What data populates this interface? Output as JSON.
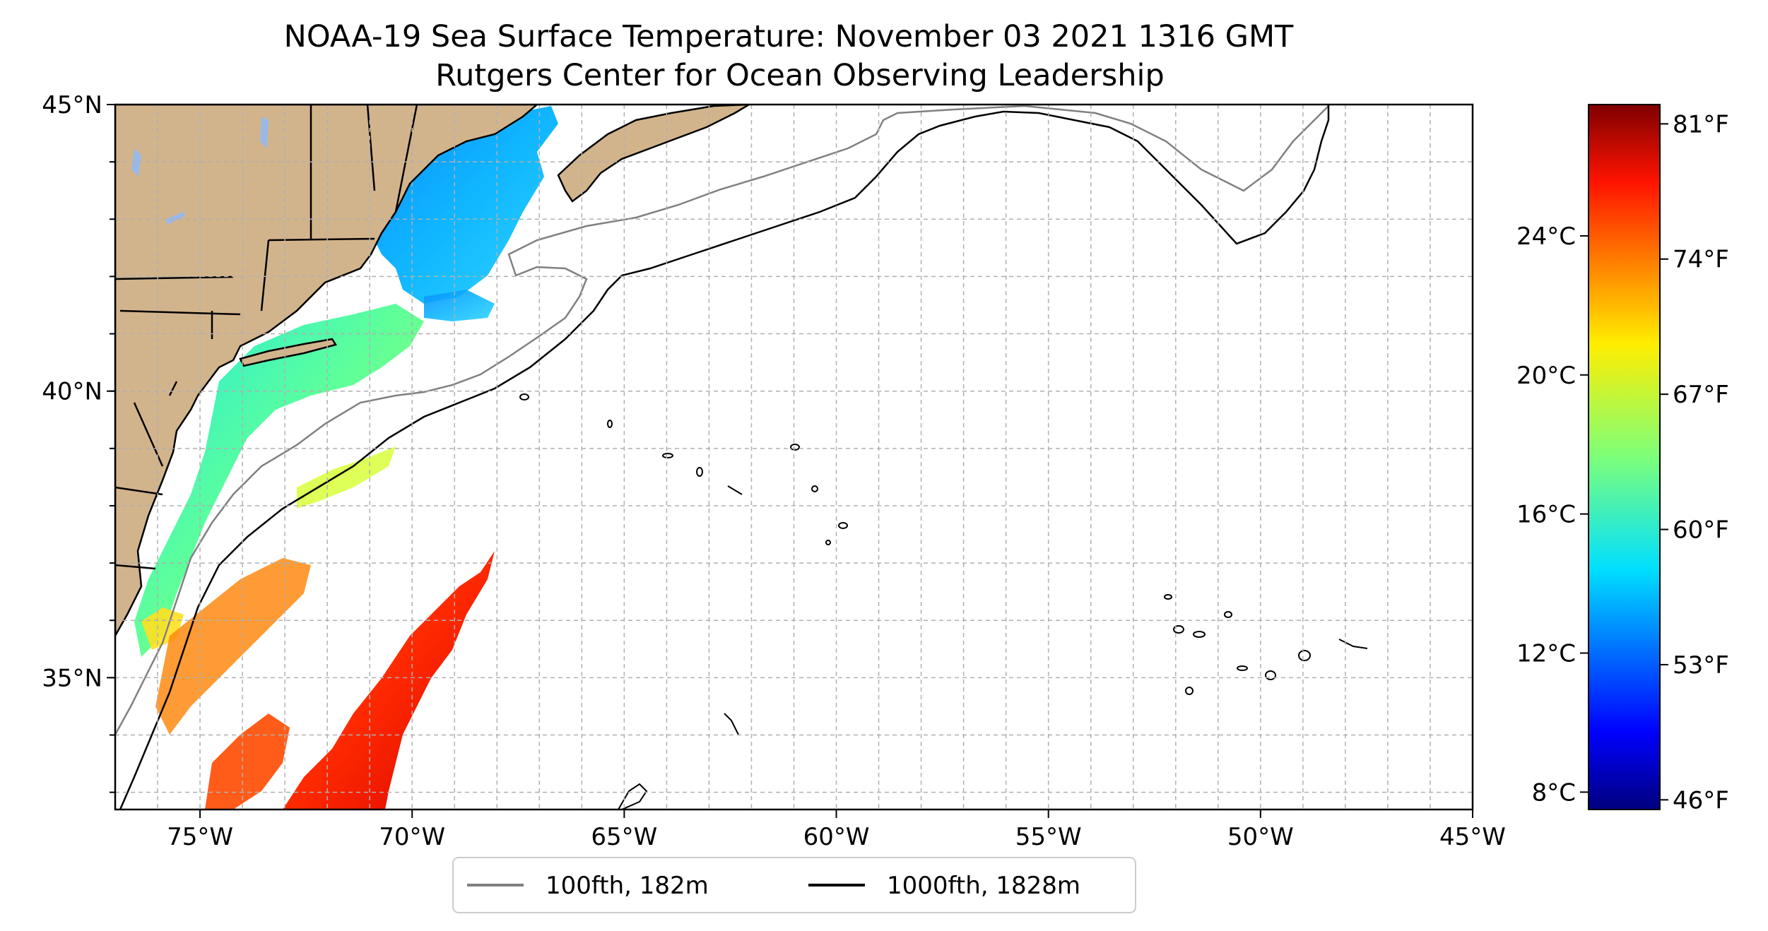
{
  "title": {
    "line1": "NOAA-19 Sea Surface Temperature: November 03 2021 1316 GMT",
    "line2": "Rutgers Center for Ocean Observing Leadership"
  },
  "map": {
    "lon_range": [
      -77,
      -45
    ],
    "lat_range": [
      32.7,
      45
    ],
    "lon_ticks": [
      {
        "value": -75,
        "label": "75°W"
      },
      {
        "value": -70,
        "label": "70°W"
      },
      {
        "value": -65,
        "label": "65°W"
      },
      {
        "value": -60,
        "label": "60°W"
      },
      {
        "value": -55,
        "label": "55°W"
      },
      {
        "value": -50,
        "label": "50°W"
      },
      {
        "value": -45,
        "label": "45°W"
      }
    ],
    "lat_ticks": [
      {
        "value": 45,
        "label": "45°N"
      },
      {
        "value": 40,
        "label": "40°N"
      },
      {
        "value": 35,
        "label": "35°N"
      }
    ],
    "gridlines": "dashed",
    "land_color": "#d2b48c",
    "lake_color": "#9ab8e6"
  },
  "legend": {
    "placement": "bottom-center",
    "items": [
      {
        "label": "100fth, 182m",
        "color": "#808080"
      },
      {
        "label": "1000fth, 1828m",
        "color": "#000000"
      }
    ]
  },
  "colorbar": {
    "colormap": "jet",
    "range_f": [
      45.5,
      82
    ],
    "celsius_ticks": [
      {
        "value_c": 24,
        "label": "24°C"
      },
      {
        "value_c": 20,
        "label": "20°C"
      },
      {
        "value_c": 16,
        "label": "16°C"
      },
      {
        "value_c": 12,
        "label": "12°C"
      },
      {
        "value_c": 8,
        "label": "8°C"
      }
    ],
    "fahrenheit_ticks": [
      {
        "value_f": 81,
        "label": "81°F"
      },
      {
        "value_f": 74,
        "label": "74°F"
      },
      {
        "value_f": 67,
        "label": "67°F"
      },
      {
        "value_f": 60,
        "label": "60°F"
      },
      {
        "value_f": 53,
        "label": "53°F"
      },
      {
        "value_f": 46,
        "label": "46°F"
      }
    ]
  }
}
